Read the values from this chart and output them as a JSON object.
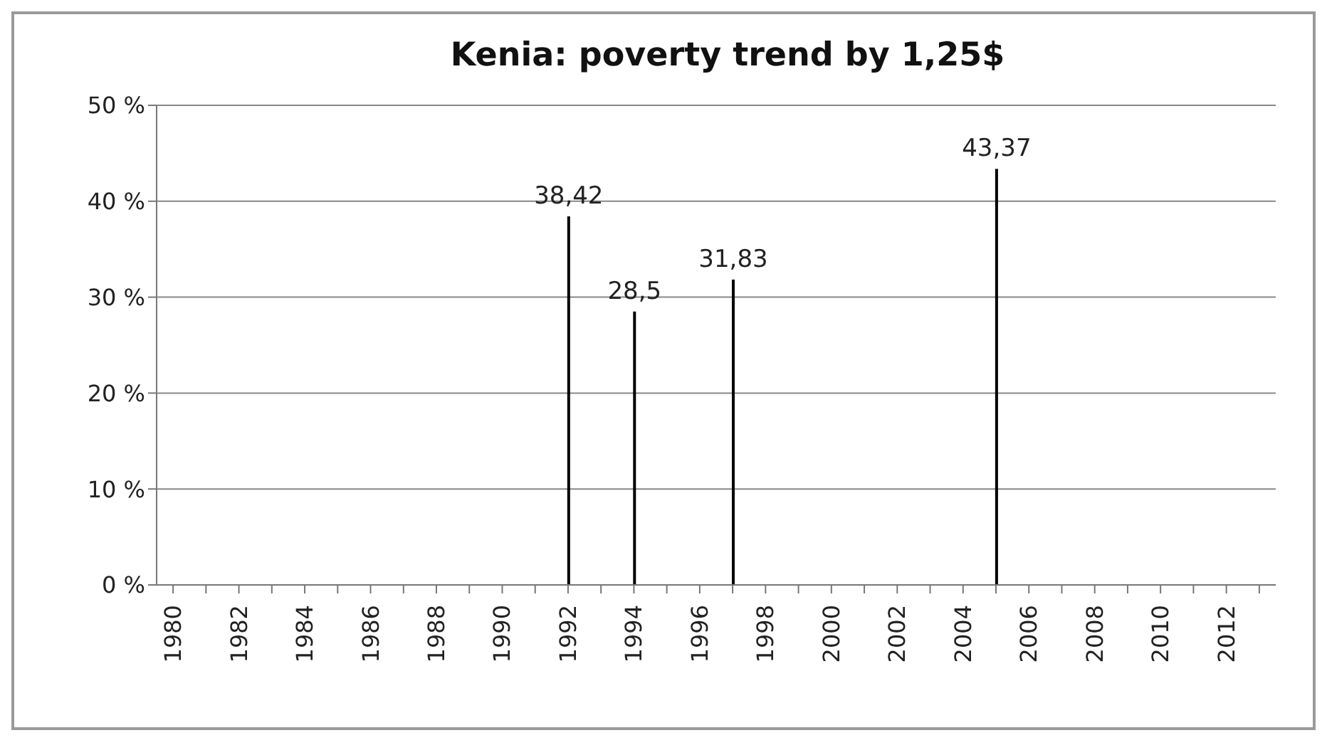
{
  "chart_data": {
    "type": "bar",
    "title": "Kenia: poverty trend by 1,25$",
    "categories": [
      "1980",
      null,
      "1982",
      null,
      "1984",
      null,
      "1986",
      null,
      "1988",
      null,
      "1990",
      null,
      "1992",
      null,
      "1994",
      null,
      "1996",
      null,
      "1998",
      null,
      "2000",
      null,
      "2002",
      null,
      "2004",
      null,
      "2006",
      null,
      "2008",
      null,
      "2010",
      null,
      "2012",
      null
    ],
    "series": [
      {
        "color": "#000000",
        "values": [
          null,
          null,
          null,
          null,
          null,
          null,
          null,
          null,
          null,
          null,
          null,
          null,
          38.42,
          null,
          28.5,
          null,
          null,
          31.83,
          null,
          null,
          null,
          null,
          null,
          null,
          null,
          43.37,
          null,
          null,
          null,
          null,
          null,
          null,
          null,
          null
        ],
        "value_labels": [
          null,
          null,
          null,
          null,
          null,
          null,
          null,
          null,
          null,
          null,
          null,
          null,
          "38,42",
          null,
          "28,5",
          null,
          null,
          "31,83",
          null,
          null,
          null,
          null,
          null,
          null,
          null,
          "43,37",
          null,
          null,
          null,
          null,
          null,
          null,
          null,
          null
        ]
      }
    ],
    "ylim": [
      0,
      50
    ],
    "yticks": [
      {
        "value": 0,
        "label": "0 %"
      },
      {
        "value": 10,
        "label": "10 %"
      },
      {
        "value": 20,
        "label": "20 %"
      },
      {
        "value": 30,
        "label": "30 %"
      },
      {
        "value": 40,
        "label": "40 %"
      },
      {
        "value": 50,
        "label": "50 %"
      }
    ],
    "grid": "y",
    "legend": false
  }
}
